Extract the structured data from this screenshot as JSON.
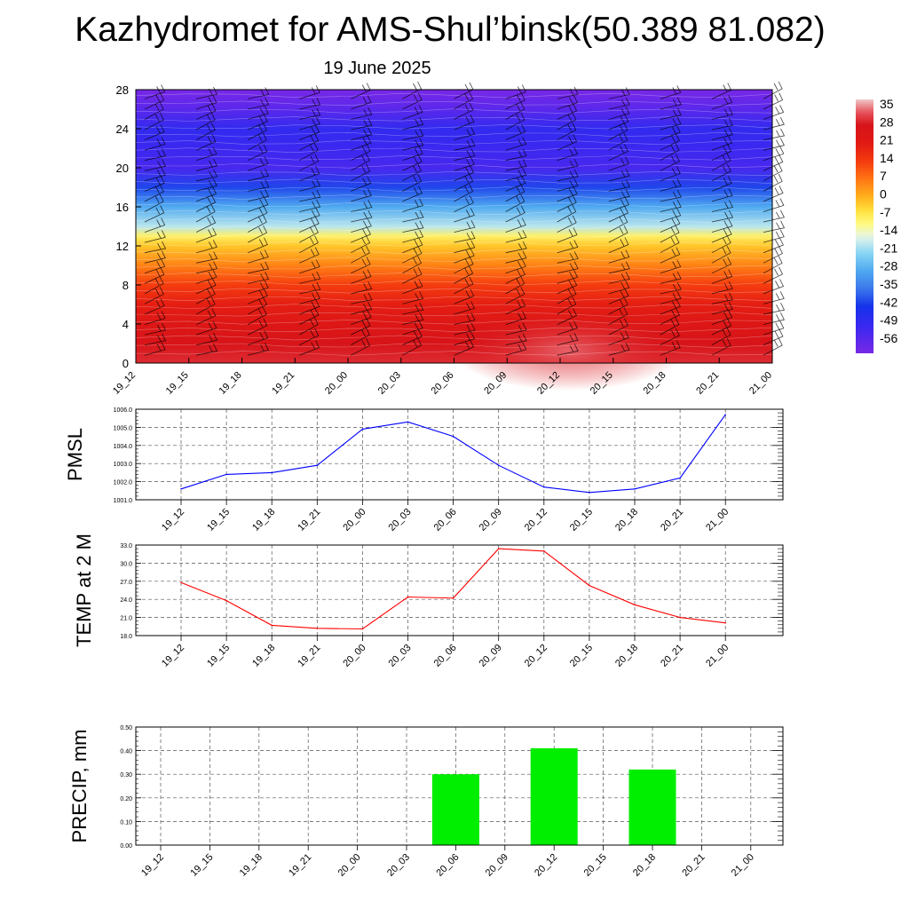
{
  "title": "Kazhydromet for AMS-Shul’binsk(50.389 81.082)",
  "date_label": "19 June 2025",
  "colors": {
    "pmsl_line": "#0000ff",
    "temp_line": "#ff0000",
    "precip_bar": "#00ee00",
    "grid": "#555555"
  },
  "chart_data": [
    {
      "type": "heatmap",
      "id": "cross-section",
      "x_ticks": [
        "19_12",
        "19_15",
        "19_18",
        "19_21",
        "20_00",
        "20_03",
        "20_06",
        "20_09",
        "20_12",
        "20_15",
        "20_18",
        "20_21",
        "21_00"
      ],
      "y_ticks": [
        "0",
        "4",
        "8",
        "12",
        "16",
        "20",
        "24",
        "28"
      ],
      "ylim": [
        0,
        28
      ],
      "colorbar_labels": [
        "35",
        "28",
        "21",
        "14",
        "7",
        "0",
        "-7",
        "-14",
        "-21",
        "-28",
        "-35",
        "-42",
        "-49",
        "-56"
      ],
      "colorbar_range": [
        -60,
        38
      ],
      "temperature_profile": [
        {
          "level": 0,
          "value": 30
        },
        {
          "level": 2,
          "value": 28
        },
        {
          "level": 4,
          "value": 24
        },
        {
          "level": 6,
          "value": 20
        },
        {
          "level": 8,
          "value": 14
        },
        {
          "level": 10,
          "value": 6
        },
        {
          "level": 12,
          "value": -2
        },
        {
          "level": 13,
          "value": -8
        },
        {
          "level": 14,
          "value": -18
        },
        {
          "level": 16,
          "value": -28
        },
        {
          "level": 18,
          "value": -40
        },
        {
          "level": 20,
          "value": -52
        },
        {
          "level": 22,
          "value": -50
        },
        {
          "level": 24,
          "value": -48
        },
        {
          "level": 26,
          "value": -55
        },
        {
          "level": 28,
          "value": -60
        }
      ],
      "wind_barbs": "shown",
      "grid": false
    },
    {
      "type": "line",
      "id": "pmsl",
      "ylabel": "PMSL",
      "categories": [
        "19_12",
        "19_15",
        "19_18",
        "19_21",
        "20_00",
        "20_03",
        "20_06",
        "20_09",
        "20_12",
        "20_15",
        "20_18",
        "20_21",
        "21_00"
      ],
      "values": [
        1001.6,
        1002.4,
        1002.5,
        1002.9,
        1004.9,
        1005.3,
        1004.5,
        1002.9,
        1001.7,
        1001.4,
        1001.6,
        1002.2,
        1005.7
      ],
      "ylim": [
        1001.0,
        1006.0
      ],
      "y_ticks": [
        "1001.0",
        "1002.0",
        "1003.0",
        "1004.0",
        "1005.0",
        "1006.0"
      ],
      "grid": true
    },
    {
      "type": "line",
      "id": "temp",
      "ylabel": "TEMP at 2 M",
      "categories": [
        "19_12",
        "19_15",
        "19_18",
        "19_21",
        "20_00",
        "20_03",
        "20_06",
        "20_09",
        "20_12",
        "20_15",
        "20_18",
        "20_21",
        "21_00"
      ],
      "values": [
        26.8,
        23.8,
        19.7,
        19.2,
        19.1,
        24.4,
        24.2,
        32.4,
        32.0,
        26.3,
        23.1,
        21.0,
        20.1
      ],
      "ylim": [
        18.0,
        33.0
      ],
      "y_ticks": [
        "18.0",
        "21.0",
        "24.0",
        "27.0",
        "30.0",
        "33.0"
      ],
      "grid": true
    },
    {
      "type": "bar",
      "id": "precip",
      "ylabel": "PRECIP, mm",
      "categories": [
        "19_12",
        "19_15",
        "19_18",
        "19_21",
        "20_00",
        "20_03",
        "20_06",
        "20_09",
        "20_12",
        "20_15",
        "20_18",
        "20_21",
        "21_00"
      ],
      "values": [
        0,
        0,
        0,
        0,
        0,
        0,
        0.3,
        0,
        0.41,
        0,
        0.32,
        0,
        0
      ],
      "ylim": [
        0,
        0.5
      ],
      "y_ticks": [
        "0.00",
        "0.10",
        "0.20",
        "0.30",
        "0.40",
        "0.50"
      ],
      "grid": true
    }
  ]
}
